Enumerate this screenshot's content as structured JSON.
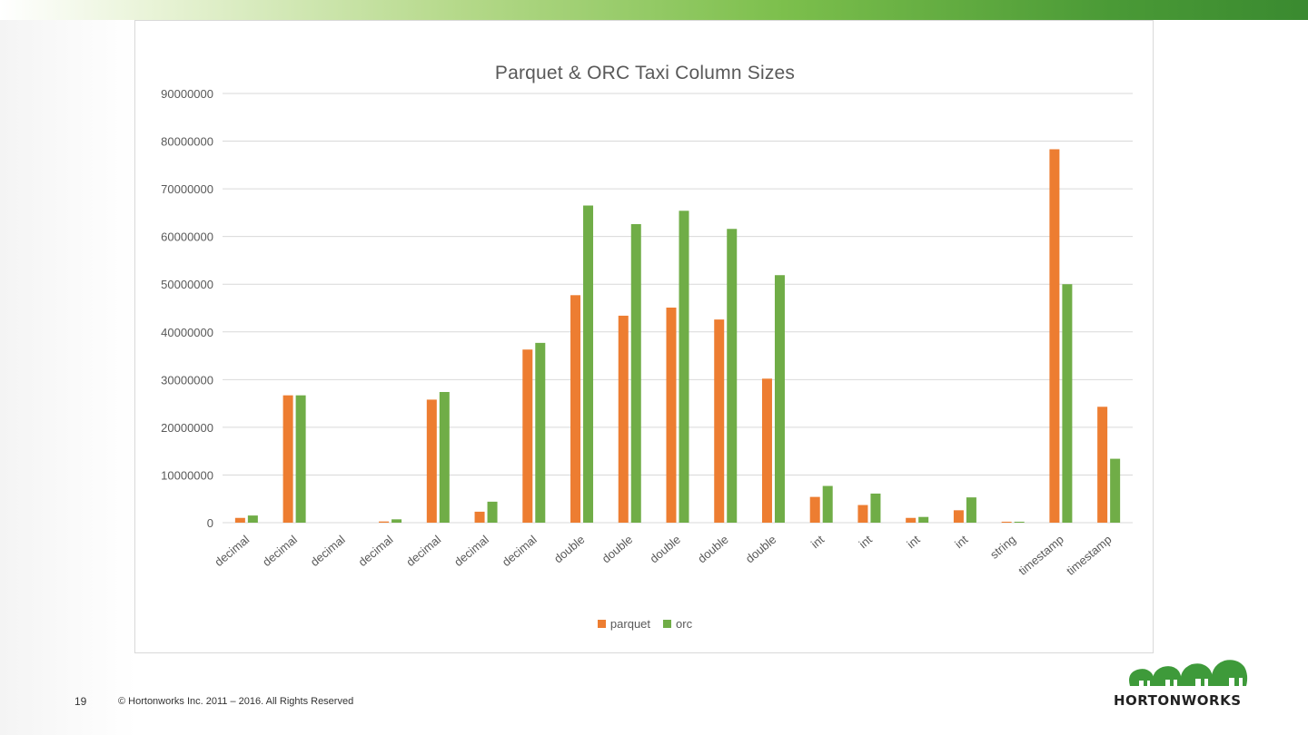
{
  "slide": {
    "page_number": "19",
    "copyright": "© Hortonworks Inc. 2011 – 2016. All Rights Reserved",
    "logo_text": "HORTONWORKS"
  },
  "colors": {
    "parquet": "#ed7d31",
    "orc": "#70ad47",
    "grid": "#d9d9d9",
    "axis_text": "#595959"
  },
  "chart_data": {
    "type": "bar",
    "title": "Parquet & ORC Taxi Column Sizes",
    "xlabel": "",
    "ylabel": "",
    "ylim": [
      0,
      90000000
    ],
    "yticks": [
      0,
      10000000,
      20000000,
      30000000,
      40000000,
      50000000,
      60000000,
      70000000,
      80000000,
      90000000
    ],
    "grid": true,
    "legend_position": "bottom",
    "categories": [
      "decimal",
      "decimal",
      "decimal",
      "decimal",
      "decimal",
      "decimal",
      "decimal",
      "double",
      "double",
      "double",
      "double",
      "double",
      "int",
      "int",
      "int",
      "int",
      "string",
      "timestamp",
      "timestamp"
    ],
    "series": [
      {
        "name": "parquet",
        "values": [
          1000000,
          26700000,
          0,
          250000,
          25800000,
          2300000,
          36300000,
          47700000,
          43400000,
          45100000,
          42600000,
          30200000,
          5400000,
          3700000,
          1000000,
          2600000,
          200000,
          78300000,
          24300000
        ]
      },
      {
        "name": "orc",
        "values": [
          1500000,
          26700000,
          0,
          700000,
          27400000,
          4400000,
          37700000,
          66500000,
          62600000,
          65400000,
          61600000,
          51900000,
          7700000,
          6100000,
          1200000,
          5300000,
          200000,
          50000000,
          13400000
        ]
      }
    ]
  }
}
